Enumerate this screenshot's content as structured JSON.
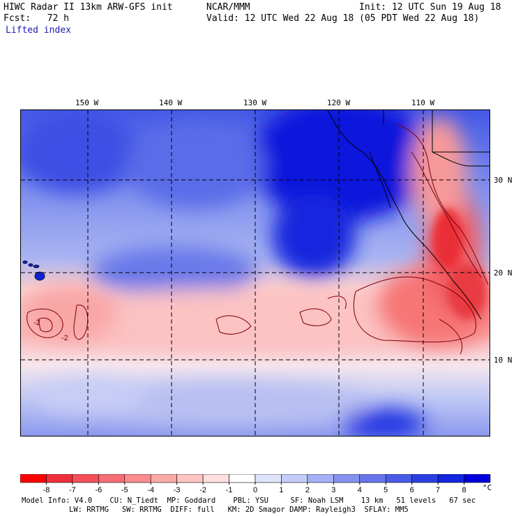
{
  "header": {
    "line1_left": "HIWC Radar II 13km ARW-GFS init",
    "line1_mid": "NCAR/MMM",
    "line1_right": "Init: 12 UTC Sun 19 Aug 18",
    "line2_left": "Fcst:   72 h",
    "line2_right": "Valid: 12 UTC Wed 22 Aug 18 (05 PDT Wed 22 Aug 18)",
    "field_label": "Lifted index"
  },
  "map": {
    "lon_labels": [
      "150 W",
      "140 W",
      "130 W",
      "120 W",
      "110 W"
    ],
    "lat_labels": [
      "30 N",
      "20 N",
      "10 N"
    ],
    "contour_label": "-2"
  },
  "colorbar": {
    "ticks": [
      "-8",
      "-7",
      "-6",
      "-5",
      "-4",
      "-3",
      "-2",
      "-1",
      "0",
      "1",
      "2",
      "3",
      "4",
      "5",
      "6",
      "7",
      "8"
    ],
    "unit": "°C",
    "colors": [
      "#ff0000",
      "#f0303a",
      "#f5505a",
      "#f86e74",
      "#fa8c8e",
      "#fcaaa8",
      "#fdc4c2",
      "#fee0de",
      "#ffffff",
      "#dfe4fb",
      "#c4ccf8",
      "#a5b0f4",
      "#8593ef",
      "#6676ea",
      "#4a5ce6",
      "#2c40e2",
      "#1226e0",
      "#0000dd"
    ]
  },
  "footer": {
    "line1": "Model Info: V4.0    CU: N_Tiedt  MP: Goddard    PBL: YSU     SF: Noah LSM    13 km   51 levels   67 sec",
    "line2": "LW: RRTMG   SW: RRTMG  DIFF: full   KM: 2D Smagor DAMP: Rayleigh3  SFLAY: MM5"
  }
}
